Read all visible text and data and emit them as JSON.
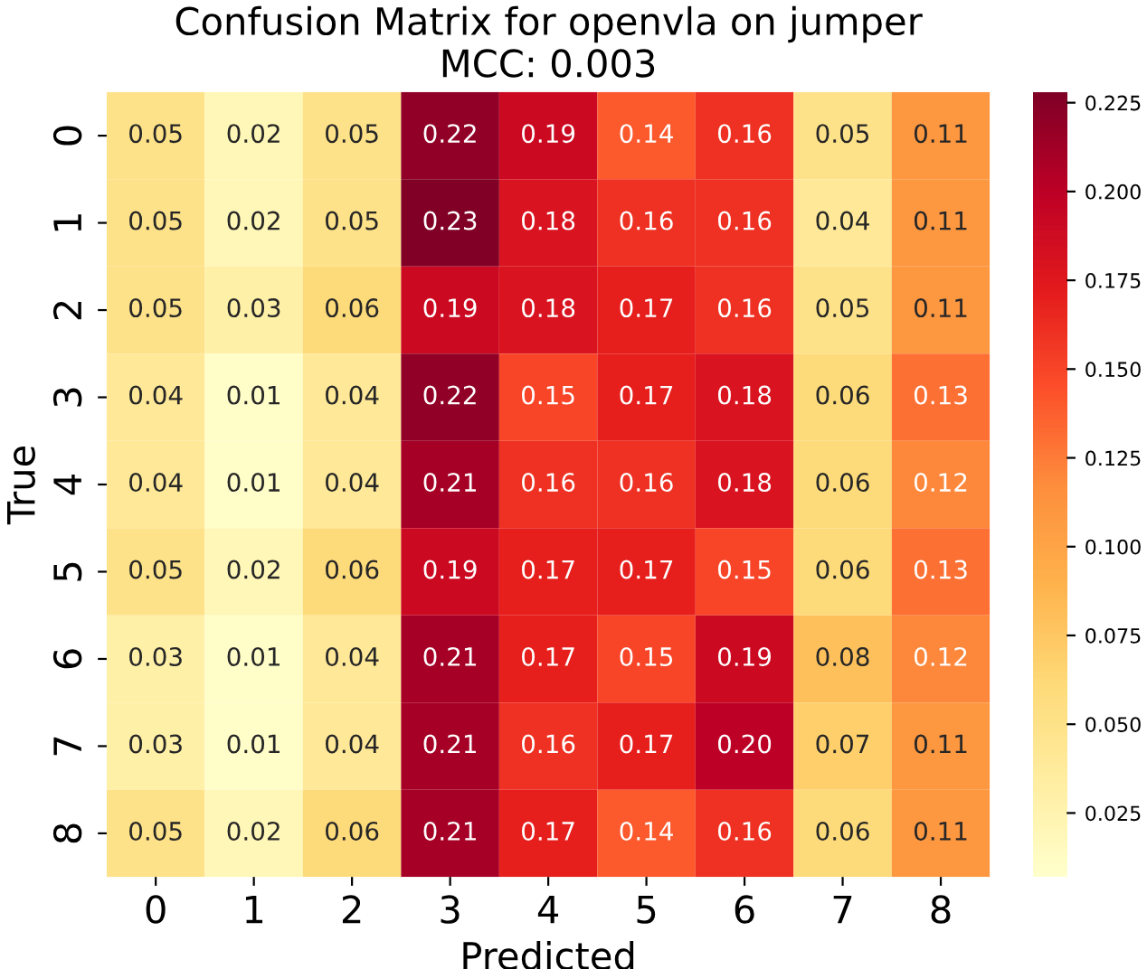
{
  "chart_data": {
    "type": "heatmap",
    "title": "Confusion Matrix for openvla on jumper\nMCC: 0.003",
    "xlabel": "Predicted",
    "ylabel": "True",
    "categories": [
      "0",
      "1",
      "2",
      "3",
      "4",
      "5",
      "6",
      "7",
      "8"
    ],
    "y_categories": [
      "0",
      "1",
      "2",
      "3",
      "4",
      "5",
      "6",
      "7",
      "8"
    ],
    "cells": [
      [
        0.05,
        0.02,
        0.05,
        0.22,
        0.19,
        0.14,
        0.16,
        0.05,
        0.11
      ],
      [
        0.05,
        0.02,
        0.05,
        0.23,
        0.18,
        0.16,
        0.16,
        0.04,
        0.11
      ],
      [
        0.05,
        0.03,
        0.06,
        0.19,
        0.18,
        0.17,
        0.16,
        0.05,
        0.11
      ],
      [
        0.04,
        0.01,
        0.04,
        0.22,
        0.15,
        0.17,
        0.18,
        0.06,
        0.13
      ],
      [
        0.04,
        0.01,
        0.04,
        0.21,
        0.16,
        0.16,
        0.18,
        0.06,
        0.12
      ],
      [
        0.05,
        0.02,
        0.06,
        0.19,
        0.17,
        0.17,
        0.15,
        0.06,
        0.13
      ],
      [
        0.03,
        0.01,
        0.04,
        0.21,
        0.17,
        0.15,
        0.19,
        0.08,
        0.12
      ],
      [
        0.03,
        0.01,
        0.04,
        0.21,
        0.16,
        0.17,
        0.2,
        0.07,
        0.11
      ],
      [
        0.05,
        0.02,
        0.06,
        0.21,
        0.17,
        0.14,
        0.16,
        0.06,
        0.11
      ]
    ],
    "clim": [
      0.007,
      0.228
    ],
    "cticks": [
      0.025,
      {
        "value": 0.05,
        "label": "0.050"
      },
      0.075,
      {
        "value": 0.1,
        "label": "0.100"
      },
      0.125,
      {
        "value": 0.15,
        "label": "0.150"
      },
      0.175,
      {
        "value": 0.2,
        "label": "0.200"
      },
      0.225
    ],
    "cell_labels": [
      [
        "0.05",
        "0.02",
        "0.05",
        "0.22",
        "0.19",
        "0.14",
        "0.16",
        "0.05",
        "0.11"
      ],
      [
        "0.05",
        "0.02",
        "0.05",
        "0.23",
        "0.18",
        "0.16",
        "0.16",
        "0.04",
        "0.11"
      ],
      [
        "0.05",
        "0.03",
        "0.06",
        "0.19",
        "0.18",
        "0.17",
        "0.16",
        "0.05",
        "0.11"
      ],
      [
        "0.04",
        "0.01",
        "0.04",
        "0.22",
        "0.15",
        "0.17",
        "0.18",
        "0.06",
        "0.13"
      ],
      [
        "0.04",
        "0.01",
        "0.04",
        "0.21",
        "0.16",
        "0.16",
        "0.18",
        "0.06",
        "0.12"
      ],
      [
        "0.05",
        "0.02",
        "0.06",
        "0.19",
        "0.17",
        "0.17",
        "0.15",
        "0.06",
        "0.13"
      ],
      [
        "0.03",
        "0.01",
        "0.04",
        "0.21",
        "0.17",
        "0.15",
        "0.19",
        "0.08",
        "0.12"
      ],
      [
        "0.03",
        "0.01",
        "0.04",
        "0.21",
        "0.16",
        "0.17",
        "0.20",
        "0.07",
        "0.11"
      ],
      [
        "0.05",
        "0.02",
        "0.06",
        "0.21",
        "0.17",
        "0.14",
        "0.16",
        "0.06",
        "0.11"
      ]
    ],
    "data_labels": true
  }
}
